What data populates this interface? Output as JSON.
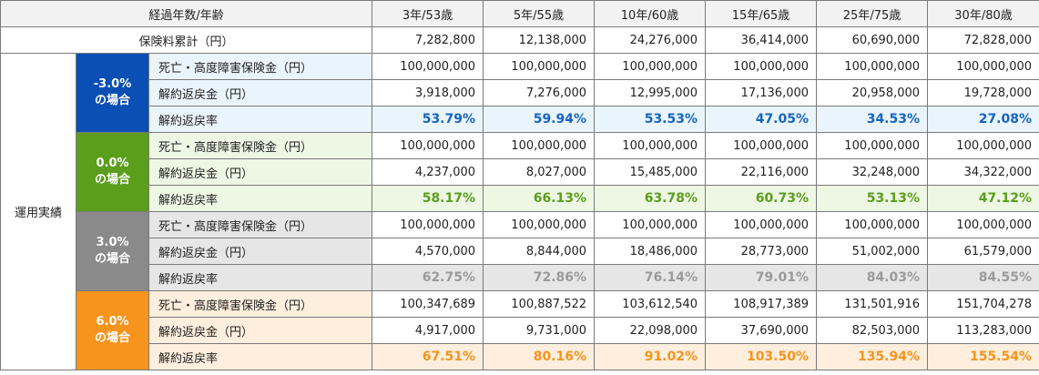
{
  "header": {
    "corner": "経過年数/年齢",
    "columns": [
      "3年/53歳",
      "5年/55歳",
      "10年/60歳",
      "15年/65歳",
      "25年/75歳",
      "30年/80歳"
    ]
  },
  "premium_row": {
    "label": "保険料累計（円）",
    "values": [
      "7,282,800",
      "12,138,000",
      "24,276,000",
      "36,414,000",
      "60,690,000",
      "72,828,000"
    ]
  },
  "group_label": "運用実績",
  "row_labels": {
    "death": "死亡・高度障害保険金（円）",
    "surrender": "解約返戻金（円）",
    "rate": "解約返戻率"
  },
  "scenarios": [
    {
      "rate_label": "-3.0%",
      "case_label": "の場合",
      "color": "#0a4fb4",
      "death": [
        "100,000,000",
        "100,000,000",
        "100,000,000",
        "100,000,000",
        "100,000,000",
        "100,000,000"
      ],
      "surrender": [
        "3,918,000",
        "7,276,000",
        "12,995,000",
        "17,136,000",
        "20,958,000",
        "19,728,000"
      ],
      "rate": [
        "53.79%",
        "59.94%",
        "53.53%",
        "47.05%",
        "34.53%",
        "27.08%"
      ]
    },
    {
      "rate_label": "0.0%",
      "case_label": "の場合",
      "color": "#5a9e1c",
      "death": [
        "100,000,000",
        "100,000,000",
        "100,000,000",
        "100,000,000",
        "100,000,000",
        "100,000,000"
      ],
      "surrender": [
        "4,237,000",
        "8,027,000",
        "15,485,000",
        "22,116,000",
        "32,248,000",
        "34,322,000"
      ],
      "rate": [
        "58.17%",
        "66.13%",
        "63.78%",
        "60.73%",
        "53.13%",
        "47.12%"
      ]
    },
    {
      "rate_label": "3.0%",
      "case_label": "の場合",
      "color": "#8a8a8a",
      "death": [
        "100,000,000",
        "100,000,000",
        "100,000,000",
        "100,000,000",
        "100,000,000",
        "100,000,000"
      ],
      "surrender": [
        "4,570,000",
        "8,844,000",
        "18,486,000",
        "28,773,000",
        "51,002,000",
        "61,579,000"
      ],
      "rate": [
        "62.75%",
        "72.86%",
        "76.14%",
        "79.01%",
        "84.03%",
        "84.55%"
      ]
    },
    {
      "rate_label": "6.0%",
      "case_label": "の場合",
      "color": "#f7941d",
      "death": [
        "100,347,689",
        "100,887,522",
        "103,612,540",
        "108,917,389",
        "131,501,916",
        "151,704,278"
      ],
      "surrender": [
        "4,917,000",
        "9,731,000",
        "22,098,000",
        "37,690,000",
        "82,503,000",
        "113,283,000"
      ],
      "rate": [
        "67.51%",
        "80.16%",
        "91.02%",
        "103.50%",
        "135.94%",
        "155.54%"
      ]
    }
  ]
}
